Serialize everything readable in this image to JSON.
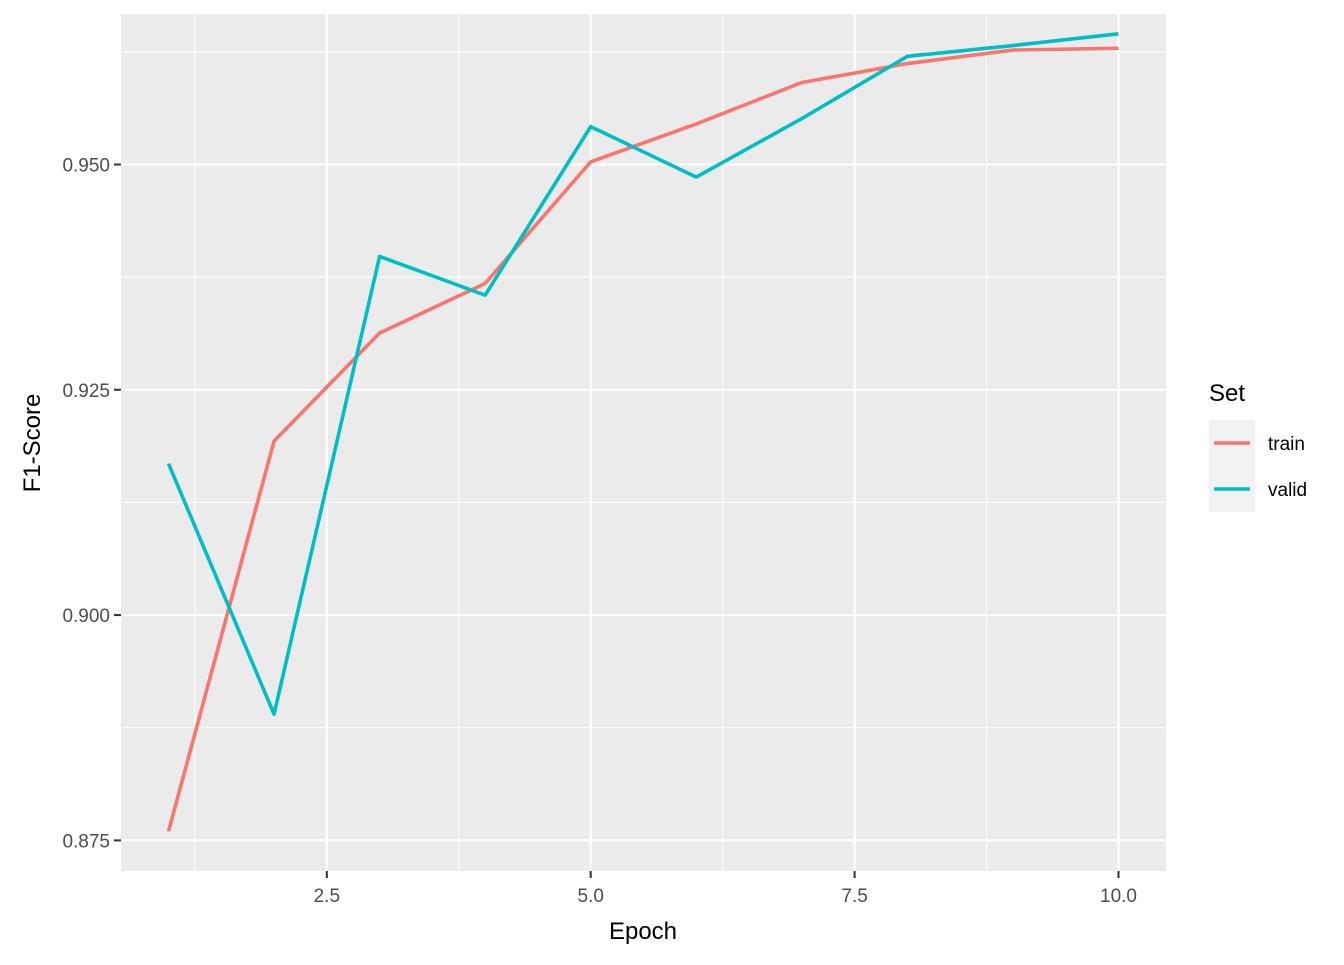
{
  "chart_data": {
    "type": "line",
    "xlabel": "Epoch",
    "ylabel": "F1-Score",
    "xlim": [
      0.55,
      10.45
    ],
    "ylim": [
      0.8716,
      0.9667
    ],
    "x_major_ticks": [
      2.5,
      5.0,
      7.5,
      10.0
    ],
    "x_tick_labels": [
      "2.5",
      "5.0",
      "7.5",
      "10.0"
    ],
    "x_minor_ticks": [
      1.25,
      3.75,
      6.25,
      8.75
    ],
    "y_major_ticks": [
      0.875,
      0.9,
      0.925,
      0.95
    ],
    "y_tick_labels": [
      "0.875",
      "0.900",
      "0.925",
      "0.950"
    ],
    "y_minor_ticks": [
      0.8875,
      0.9125,
      0.9375,
      0.9625
    ],
    "grid": true,
    "legend": {
      "title": "Set",
      "position": "right"
    },
    "x": [
      1,
      2,
      3,
      4,
      5,
      6,
      7,
      8,
      9,
      10
    ],
    "series": [
      {
        "name": "train",
        "color": "#F8766D",
        "values": [
          0.876,
          0.9193,
          0.9313,
          0.9368,
          0.9503,
          0.9545,
          0.9591,
          0.9612,
          0.9627,
          0.9629
        ]
      },
      {
        "name": "valid",
        "color": "#00BFC4",
        "values": [
          0.9168,
          0.889,
          0.9398,
          0.9355,
          0.9542,
          0.9486,
          0.9551,
          0.962,
          0.9632,
          0.9645
        ]
      }
    ]
  }
}
